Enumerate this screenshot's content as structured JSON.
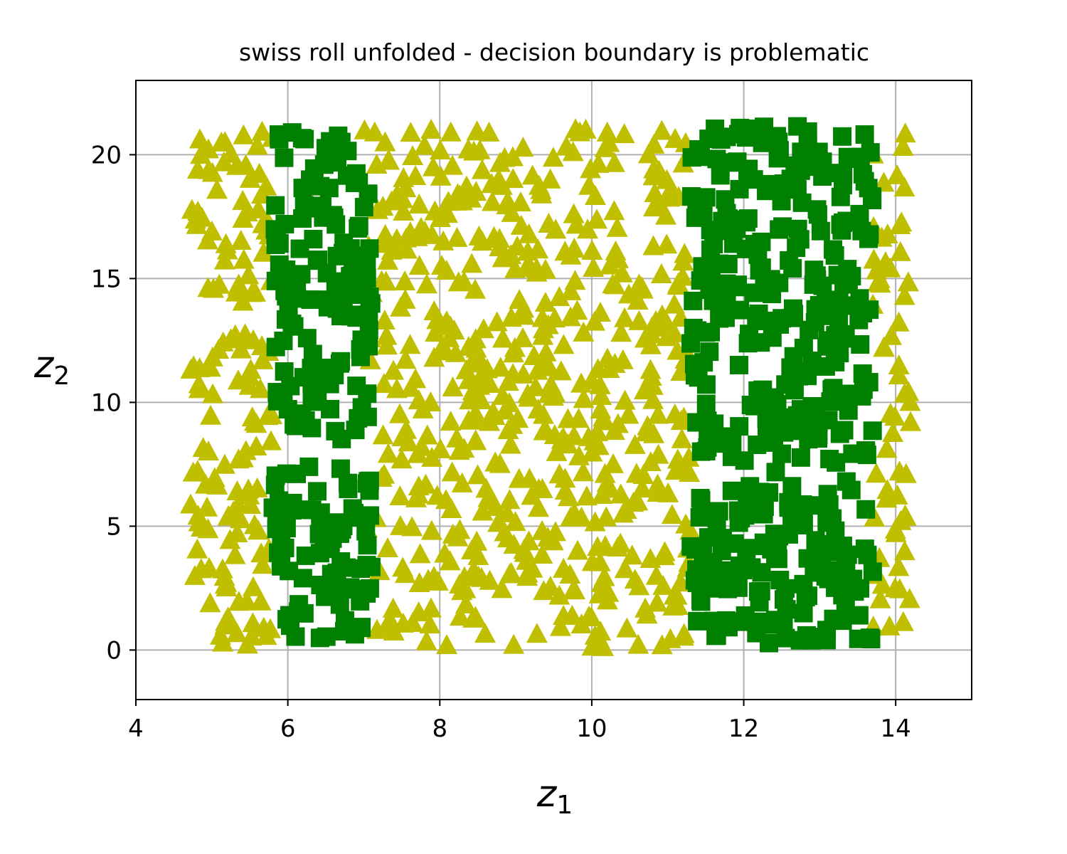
{
  "chart_data": {
    "type": "scatter",
    "title": "swiss roll unfolded - decision boundary is problematic",
    "xlabel": "z",
    "xlabel_subscript": "1",
    "ylabel": "z",
    "ylabel_subscript": "2",
    "xlim": [
      4,
      15
    ],
    "ylim": [
      -2,
      23
    ],
    "xticks": [
      4,
      6,
      8,
      10,
      12,
      14
    ],
    "yticks": [
      0,
      5,
      10,
      15,
      20
    ],
    "grid": true,
    "series": [
      {
        "marker": "square",
        "color": "#008000",
        "description_hidden": true,
        "regions": [
          {
            "x": [
              5.8,
              7.1
            ],
            "y": [
              0.4,
              21.0
            ],
            "count": 220
          },
          {
            "x": [
              11.3,
              13.7
            ],
            "y": [
              0.2,
              21.2
            ],
            "count": 420
          }
        ]
      },
      {
        "marker": "triangle",
        "color": "#bfbf00",
        "regions": [
          {
            "x": [
              4.7,
              5.8
            ],
            "y": [
              0.0,
              21.0
            ],
            "count": 150
          },
          {
            "x": [
              7.0,
              11.3
            ],
            "y": [
              0.0,
              21.0
            ],
            "count": 560
          },
          {
            "x": [
              13.7,
              14.2
            ],
            "y": [
              0.5,
              21.0
            ],
            "count": 60
          }
        ]
      }
    ],
    "green_gaps": [
      {
        "x": [
          5.8,
          7.1
        ],
        "y": [
          7.5,
          8.5
        ]
      },
      {
        "x": [
          11.3,
          13.7
        ],
        "y": [
          17.8,
          18.0
        ]
      }
    ]
  }
}
